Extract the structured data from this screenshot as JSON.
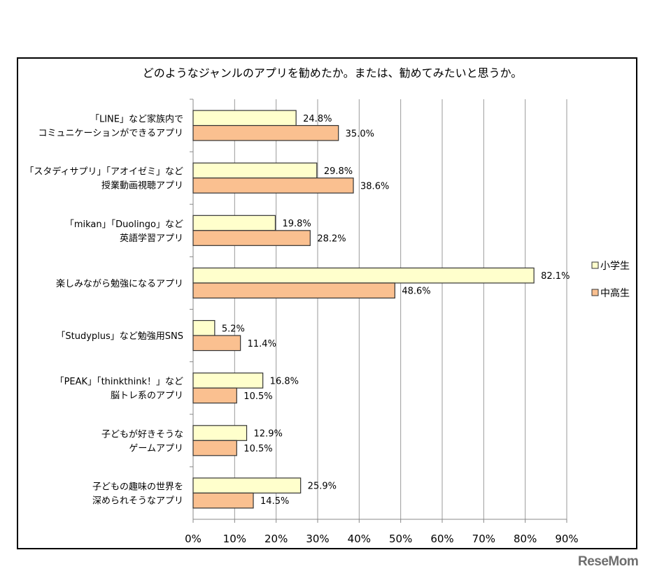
{
  "chart_data": {
    "type": "bar",
    "orientation": "horizontal",
    "title": "どのようなジャンルのアプリを勧めたか。または、勧めてみたいと思うか。",
    "categories": [
      [
        "「LINE」など家族内で",
        "コミュニケーションができるアプリ"
      ],
      [
        "「スタディサプリ」「アオイゼミ」など",
        "授業動画視聴アプリ"
      ],
      [
        "「mikan」「Duolingo」など",
        "英語学習アプリ"
      ],
      [
        "楽しみながら勉強になるアプリ"
      ],
      [
        "「Studyplus」など勉強用SNS"
      ],
      [
        "「PEAK」「thinkthink！」など",
        "脳トレ系のアプリ"
      ],
      [
        "子どもが好きそうな",
        "ゲームアプリ"
      ],
      [
        "子どもの趣味の世界を",
        "深められそうなアプリ"
      ]
    ],
    "series": [
      {
        "name": "小学生",
        "color": "#FFFFCC",
        "values": [
          24.8,
          29.8,
          19.8,
          82.1,
          5.2,
          16.8,
          12.9,
          25.9
        ],
        "labels": [
          "24.8%",
          "29.8%",
          "19.8%",
          "82.1%",
          "5.2%",
          "16.8%",
          "12.9%",
          "25.9%"
        ]
      },
      {
        "name": "中高生",
        "color": "#FAC090",
        "values": [
          35.0,
          38.6,
          28.2,
          48.6,
          11.4,
          10.5,
          10.5,
          14.5
        ],
        "labels": [
          "35.0%",
          "38.6%",
          "28.2%",
          "48.6%",
          "11.4%",
          "10.5%",
          "10.5%",
          "14.5%"
        ]
      }
    ],
    "xlim": [
      0,
      90
    ],
    "xticks": [
      "0%",
      "10%",
      "20%",
      "30%",
      "40%",
      "50%",
      "60%",
      "70%",
      "80%",
      "90%"
    ],
    "grid": true,
    "legend": "right"
  },
  "watermark": "ReseMom"
}
